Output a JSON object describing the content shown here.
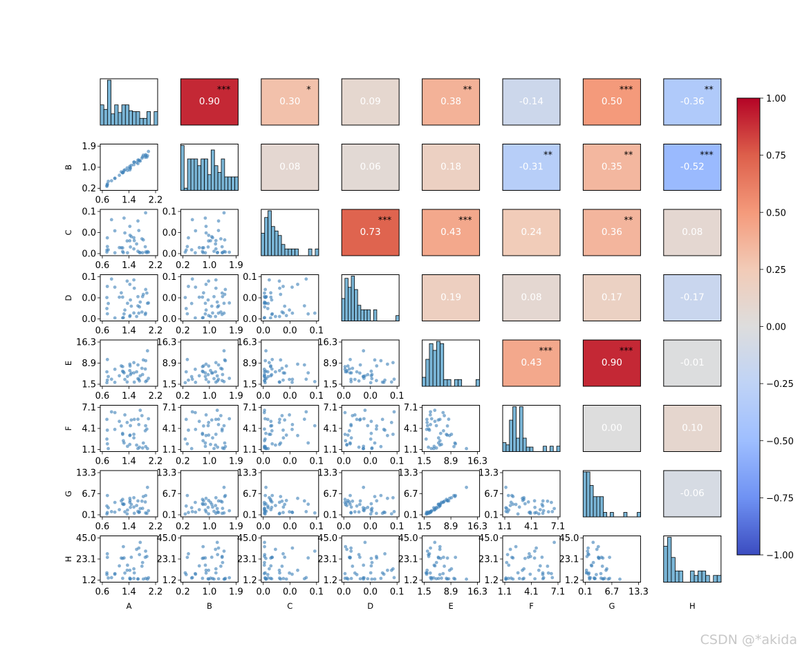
{
  "chart_data": {
    "type": "pairplot",
    "variables": [
      "A",
      "B",
      "C",
      "D",
      "E",
      "F",
      "G",
      "H"
    ],
    "tick_labels": {
      "A": [
        "0.6",
        "1.4",
        "2.2"
      ],
      "B": [
        "0.2",
        "1.0",
        "1.9"
      ],
      "C": [
        "0.0",
        "0.0",
        "0.1"
      ],
      "D": [
        "0.0",
        "0.0",
        "0.1"
      ],
      "E": [
        "1.5",
        "8.9",
        "16.3"
      ],
      "F": [
        "1.1",
        "4.1",
        "7.1"
      ],
      "G": [
        "0.1",
        "6.7",
        "13.3"
      ],
      "H": [
        "1.2",
        "23.1",
        "45.0"
      ]
    },
    "upper_correlations": [
      {
        "row": "A",
        "col": "B",
        "r": "0.90",
        "stars": "***"
      },
      {
        "row": "A",
        "col": "C",
        "r": "0.30",
        "stars": "*"
      },
      {
        "row": "A",
        "col": "D",
        "r": "0.09",
        "stars": ""
      },
      {
        "row": "A",
        "col": "E",
        "r": "0.38",
        "stars": "**"
      },
      {
        "row": "A",
        "col": "F",
        "r": "-0.14",
        "stars": ""
      },
      {
        "row": "A",
        "col": "G",
        "r": "0.50",
        "stars": "***"
      },
      {
        "row": "A",
        "col": "H",
        "r": "-0.36",
        "stars": "**"
      },
      {
        "row": "B",
        "col": "C",
        "r": "0.08",
        "stars": ""
      },
      {
        "row": "B",
        "col": "D",
        "r": "0.06",
        "stars": ""
      },
      {
        "row": "B",
        "col": "E",
        "r": "0.18",
        "stars": ""
      },
      {
        "row": "B",
        "col": "F",
        "r": "-0.31",
        "stars": "**"
      },
      {
        "row": "B",
        "col": "G",
        "r": "0.35",
        "stars": "**"
      },
      {
        "row": "B",
        "col": "H",
        "r": "-0.52",
        "stars": "***"
      },
      {
        "row": "C",
        "col": "D",
        "r": "0.73",
        "stars": "***"
      },
      {
        "row": "C",
        "col": "E",
        "r": "0.43",
        "stars": "***"
      },
      {
        "row": "C",
        "col": "F",
        "r": "0.24",
        "stars": ""
      },
      {
        "row": "C",
        "col": "G",
        "r": "0.36",
        "stars": "**"
      },
      {
        "row": "C",
        "col": "H",
        "r": "0.08",
        "stars": ""
      },
      {
        "row": "D",
        "col": "E",
        "r": "0.19",
        "stars": ""
      },
      {
        "row": "D",
        "col": "F",
        "r": "0.08",
        "stars": ""
      },
      {
        "row": "D",
        "col": "G",
        "r": "0.17",
        "stars": ""
      },
      {
        "row": "D",
        "col": "H",
        "r": "-0.17",
        "stars": ""
      },
      {
        "row": "E",
        "col": "F",
        "r": "0.43",
        "stars": "***"
      },
      {
        "row": "E",
        "col": "G",
        "r": "0.90",
        "stars": "***"
      },
      {
        "row": "E",
        "col": "H",
        "r": "-0.01",
        "stars": ""
      },
      {
        "row": "F",
        "col": "G",
        "r": "0.00",
        "stars": ""
      },
      {
        "row": "F",
        "col": "H",
        "r": "0.10",
        "stars": ""
      },
      {
        "row": "G",
        "col": "H",
        "r": "-0.06",
        "stars": ""
      }
    ],
    "histograms": {
      "A": [
        0.45,
        0.35,
        1.0,
        0.25,
        0.45,
        0.28,
        0.45,
        0.45,
        0.32,
        0.3,
        0.3,
        0.15,
        0.15,
        0.3,
        0.0,
        0.3
      ],
      "B": [
        1.0,
        0.05,
        0.7,
        0.7,
        0.7,
        0.55,
        0.7,
        0.7,
        0.35,
        0.9,
        0.55,
        0.4,
        0.7,
        0.3,
        0.3,
        0.3,
        0.3
      ],
      "C": [
        0.5,
        0.85,
        1.0,
        0.65,
        0.55,
        0.45,
        0.25,
        0.15,
        0.15,
        0.15,
        0.15,
        0.0,
        0.0,
        0.0,
        0.15,
        0.0,
        0.15
      ],
      "D": [
        0.5,
        0.95,
        0.75,
        1.0,
        0.7,
        0.35,
        0.25,
        0.25,
        0.25,
        0.0,
        0.25,
        0.0,
        0.0,
        0.0,
        0.0,
        0.0,
        0.0,
        0.12
      ],
      "E": [
        0.2,
        0.6,
        0.95,
        0.8,
        1.0,
        0.95,
        0.15,
        0.15,
        0.0,
        0.15,
        0.15,
        0.0,
        0.0,
        0.0,
        0.0,
        0.15
      ],
      "F": [
        0.2,
        0.15,
        0.7,
        1.0,
        0.3,
        1.0,
        0.3,
        0.1,
        0.1,
        0.0,
        0.0,
        0.0,
        0.12,
        0.0,
        0.12,
        0.0,
        0.12
      ],
      "G": [
        1.0,
        1.0,
        0.7,
        0.45,
        0.45,
        0.45,
        0.1,
        0.0,
        0.1,
        0.0,
        0.0,
        0.0,
        0.1,
        0.0,
        0.0,
        0.0,
        0.1
      ],
      "H": [
        0.8,
        1.0,
        0.55,
        0.25,
        0.25,
        0.0,
        0.0,
        0.25,
        0.15,
        0.25,
        0.25,
        0.15,
        0.0,
        0.15,
        0.15
      ]
    },
    "colorbar": {
      "min": -1.0,
      "max": 1.0,
      "colormap": "coolwarm",
      "ticks": [
        "1.00",
        "0.75",
        "0.50",
        "0.25",
        "0.00",
        "−0.25",
        "−0.50",
        "−0.75",
        "−1.00"
      ]
    },
    "hist_fill_color": "#7ab5d6",
    "scatter_color": "#3a7fb8"
  },
  "watermark": "CSDN @*akida"
}
